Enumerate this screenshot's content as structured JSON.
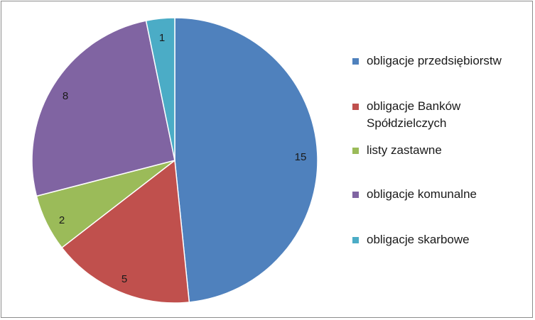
{
  "chart_data": {
    "type": "pie",
    "title": "",
    "slices": [
      {
        "label": "obligacje przedsiębiorstw",
        "value": 15,
        "color": "#4f81bd"
      },
      {
        "label": "obligacje Banków Spółdzielczych",
        "value": 5,
        "color": "#c0504d"
      },
      {
        "label": "listy zastawne",
        "value": 2,
        "color": "#9bbb59"
      },
      {
        "label": "obligacje komunalne",
        "value": 8,
        "color": "#8064a2"
      },
      {
        "label": "obligacje skarbowe",
        "value": 1,
        "color": "#4bacc6"
      }
    ],
    "data_labels_shown": true,
    "start_angle": "12 o'clock",
    "direction": "clockwise",
    "legend_position": "right"
  }
}
